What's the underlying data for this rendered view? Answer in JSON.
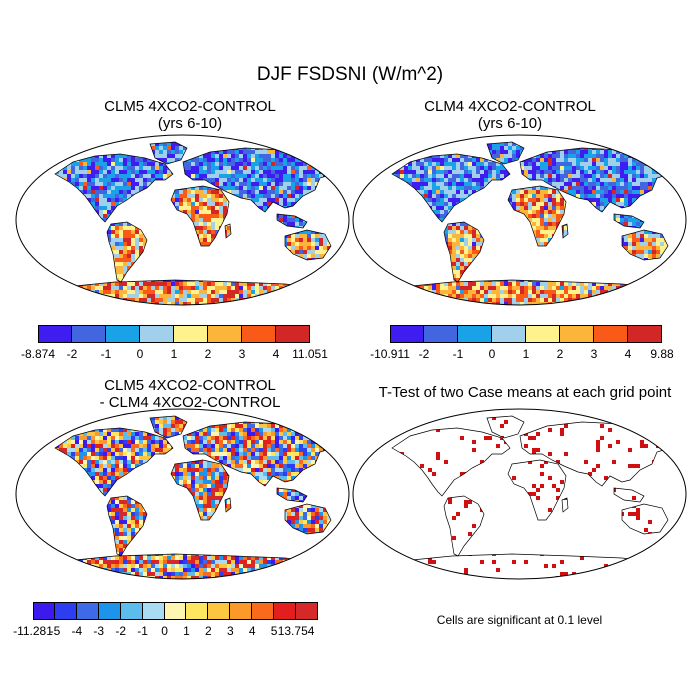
{
  "title": "DJF FSDSNI (W/m^2)",
  "panels": [
    {
      "title_line1": "CLM5 4XCO2-CONTROL",
      "title_line2": "(yrs 6-10)",
      "palette": [
        "#3f1df0",
        "#4266e0",
        "#1aa2e8",
        "#a0d0ec",
        "#fdf28c",
        "#fbb53a",
        "#f95a18",
        "#d32626"
      ],
      "colorbar_labels": [
        "-8.874",
        "-2",
        "-1",
        "0",
        "1",
        "2",
        "3",
        "4",
        "11.051"
      ]
    },
    {
      "title_line1": "CLM4 4XCO2-CONTROL",
      "title_line2": "(yrs 6-10)",
      "palette": [
        "#3f1df0",
        "#4266e0",
        "#1aa2e8",
        "#a0d0ec",
        "#fdf28c",
        "#fbb53a",
        "#f95a18",
        "#d32626"
      ],
      "colorbar_labels": [
        "-10.911",
        "-2",
        "-1",
        "0",
        "1",
        "2",
        "3",
        "4",
        "9.88"
      ]
    },
    {
      "title_line1": "CLM5 4XCO2-CONTROL",
      "title_line2": "- CLM4 4XCO2-CONTROL",
      "palette": [
        "#3c1aee",
        "#2d3ef0",
        "#3d6ae6",
        "#1e93ea",
        "#5cbcec",
        "#a9dcf2",
        "#fdf6b0",
        "#fde760",
        "#fcc640",
        "#fb9a2a",
        "#f96a1c",
        "#e31e1e",
        "#d52828"
      ],
      "colorbar_labels": [
        "-11.281",
        "-5",
        "-4",
        "-3",
        "-2",
        "-1",
        "0",
        "1",
        "2",
        "3",
        "4",
        "5",
        "13.754"
      ]
    },
    {
      "title_line1": "T-Test of two Case means at each grid point",
      "note": "Cells are significant at 0.1 level",
      "significance_color": "#d01010"
    }
  ]
}
